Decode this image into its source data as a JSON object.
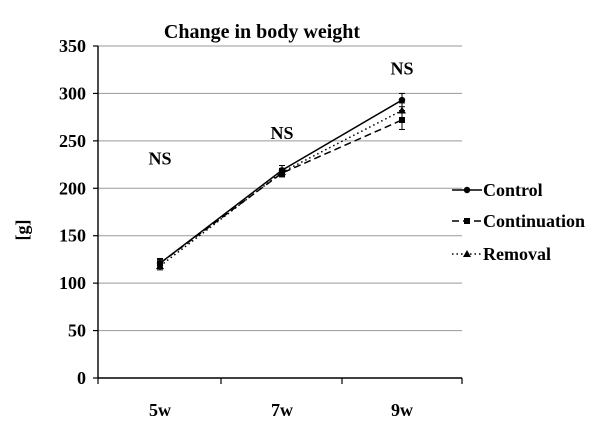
{
  "chart_data": {
    "type": "line",
    "title": "Change in body weight",
    "xlabel": "",
    "ylabel": "[g]",
    "categories": [
      "5w",
      "7w",
      "9w"
    ],
    "ylim": [
      0,
      350
    ],
    "yticks": [
      0,
      50,
      100,
      150,
      200,
      250,
      300,
      350
    ],
    "grid": true,
    "legend_position": "right",
    "series": [
      {
        "name": "Control",
        "values": [
          121,
          219,
          293
        ],
        "errors": [
          5,
          5,
          7
        ],
        "line_style": "solid",
        "marker": "circle"
      },
      {
        "name": "Continuation",
        "values": [
          121,
          216,
          272
        ],
        "errors": [
          4,
          4,
          10
        ],
        "line_style": "dashed",
        "marker": "square"
      },
      {
        "name": "Removal",
        "values": [
          118,
          217,
          282
        ],
        "errors": [
          4,
          4,
          8
        ],
        "line_style": "dotted",
        "marker": "triangle"
      }
    ],
    "annotations": [
      {
        "text": "NS",
        "category": "5w",
        "y": 225
      },
      {
        "text": "NS",
        "category": "7w",
        "y": 252
      },
      {
        "text": "NS",
        "category": "9w",
        "y": 320
      }
    ]
  }
}
